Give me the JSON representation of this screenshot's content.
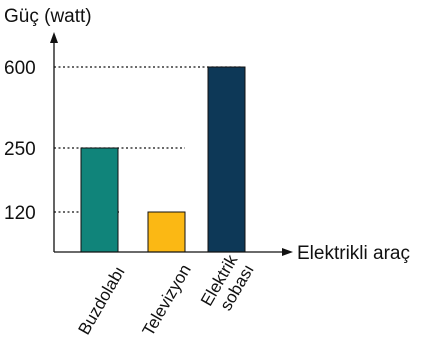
{
  "chart_data": {
    "type": "bar",
    "ylabel": "Güç (watt)",
    "xlabel": "Elektrikli araç",
    "categories": [
      [
        "Buzdolabı"
      ],
      [
        "Televizyon"
      ],
      [
        "Elektrik",
        "sobası"
      ]
    ],
    "values": [
      250,
      120,
      600
    ],
    "yticks": [
      "120",
      "250",
      "600"
    ],
    "tick_values": [
      120,
      250,
      600
    ],
    "colors": [
      "#10847a",
      "#fbb814",
      "#0d3857"
    ],
    "grid": "dotted reference lines at tick values",
    "legend": "none"
  }
}
